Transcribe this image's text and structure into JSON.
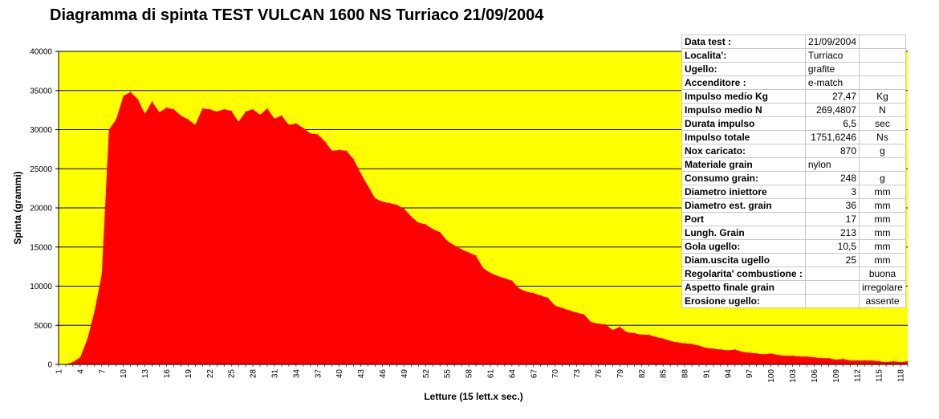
{
  "chart_data": {
    "type": "area",
    "title": "Diagramma di spinta  TEST VULCAN 1600 NS Turriaco 21/09/2004",
    "xlabel": "Letture (15 lett.x sec.)",
    "ylabel": "Spinta (grammi)",
    "ylim": [
      0,
      40000
    ],
    "yticks": [
      0,
      5000,
      10000,
      15000,
      20000,
      25000,
      30000,
      35000,
      40000
    ],
    "ytick_labels": [
      "0",
      "5000",
      "10000",
      "15000",
      "20000",
      "25000",
      "30000",
      "35000",
      "40000"
    ],
    "xlim": [
      1,
      119
    ],
    "xtick_labels": [
      "1",
      "4",
      "7",
      "10",
      "13",
      "16",
      "19",
      "22",
      "25",
      "28",
      "31",
      "34",
      "37",
      "40",
      "43",
      "46",
      "49",
      "52",
      "55",
      "58",
      "61",
      "64",
      "67",
      "70",
      "73",
      "76",
      "79",
      "82",
      "85",
      "88",
      "91",
      "94",
      "97",
      "100",
      "103",
      "106",
      "109",
      "112",
      "115",
      "118"
    ],
    "grid": "horizontal",
    "colors": {
      "plot_background": "#ffff00",
      "fill": "#ff0000",
      "grid": "#000000"
    },
    "series": [
      {
        "values": [
          0,
          0,
          300,
          900,
          3200,
          6800,
          11500,
          30000,
          31300,
          34300,
          34800,
          33900,
          32000,
          33600,
          32200,
          32800,
          32600,
          31800,
          31300,
          30600,
          32700,
          32600,
          32300,
          32600,
          32400,
          31000,
          32300,
          32600,
          31900,
          32700,
          31400,
          31800,
          30600,
          30800,
          30200,
          29500,
          29400,
          28500,
          27300,
          27400,
          27300,
          26200,
          24400,
          22800,
          21200,
          20800,
          20600,
          20400,
          19900,
          18900,
          18100,
          17900,
          17300,
          16900,
          15800,
          15200,
          14700,
          14300,
          13900,
          12300,
          11700,
          11300,
          11000,
          10700,
          9700,
          9300,
          9100,
          8800,
          8500,
          7500,
          7200,
          6900,
          6600,
          6400,
          5400,
          5200,
          5100,
          4400,
          4800,
          4100,
          4000,
          3800,
          3800,
          3500,
          3300,
          3000,
          2800,
          2700,
          2600,
          2400,
          2100,
          2000,
          1900,
          1800,
          1900,
          1600,
          1500,
          1400,
          1300,
          1400,
          1200,
          1100,
          1100,
          1000,
          1000,
          900,
          800,
          800,
          600,
          700,
          500,
          500,
          500,
          500,
          400,
          300,
          400,
          300,
          400
        ]
      }
    ]
  },
  "info_table": [
    {
      "label": "Data test :",
      "value": "21/09/2004",
      "unit": ""
    },
    {
      "label": "Localita':",
      "value": "Turriaco",
      "unit": ""
    },
    {
      "label": "Ugello:",
      "value": "grafite",
      "unit": ""
    },
    {
      "label": "Accenditore :",
      "value": "e-match",
      "unit": ""
    },
    {
      "label": "Impulso medio Kg",
      "value": "27,47",
      "unit": "Kg"
    },
    {
      "label": "Impulso medio N",
      "value": "269,4807",
      "unit": "N"
    },
    {
      "label": "Durata impulso",
      "value": "6,5",
      "unit": "sec"
    },
    {
      "label": "Impulso totale",
      "value": "1751,6246",
      "unit": "Ns"
    },
    {
      "label": "Nox caricato:",
      "value": "870",
      "unit": "g"
    },
    {
      "label": "Materiale grain",
      "value": "nylon",
      "unit": ""
    },
    {
      "label": "Consumo grain:",
      "value": "248",
      "unit": "g"
    },
    {
      "label": "Diametro iniettore",
      "value": "3",
      "unit": "mm"
    },
    {
      "label": "Diametro est. grain",
      "value": "36",
      "unit": "mm"
    },
    {
      "label": "Port",
      "value": "17",
      "unit": "mm"
    },
    {
      "label": "Lungh. Grain",
      "value": "213",
      "unit": "mm"
    },
    {
      "label": "Gola ugello:",
      "value": "10,5",
      "unit": "mm"
    },
    {
      "label": "Diam.uscita ugello",
      "value": "25",
      "unit": "mm"
    },
    {
      "label": "Regolarita' combustione :",
      "value": "",
      "unit": "buona"
    },
    {
      "label": "Aspetto finale grain",
      "value": "",
      "unit": "irregolare"
    },
    {
      "label": "Erosione ugello:",
      "value": "",
      "unit": "assente"
    }
  ]
}
